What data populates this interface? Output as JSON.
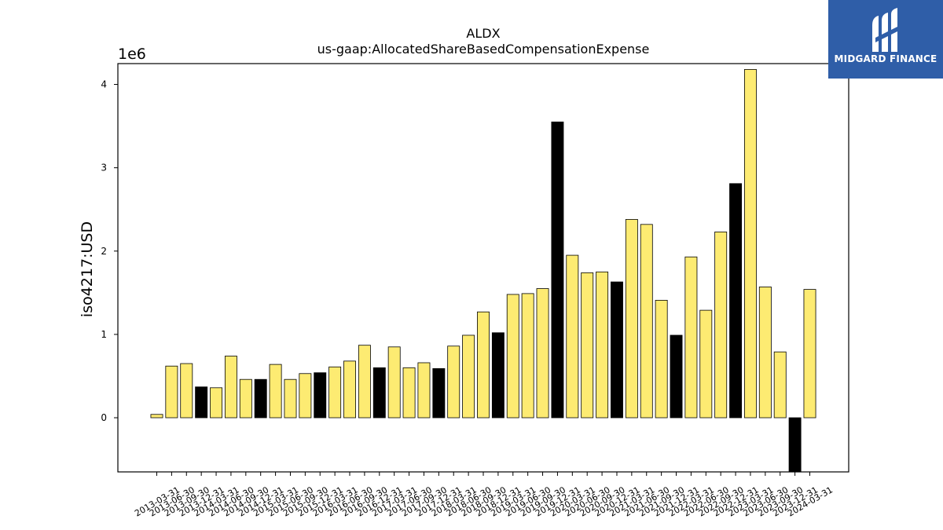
{
  "chart_data": {
    "type": "bar",
    "title": "ALDX",
    "subtitle": "us-gaap:AllocatedShareBasedCompensationExpense",
    "ylabel": "iso4217:USD",
    "xlabel": "",
    "y_scale_label": "1e6",
    "ylim": [
      -650000,
      4250000
    ],
    "yticks": [
      0,
      1,
      2,
      3,
      4
    ],
    "grid": false,
    "colors": {
      "quarter": "#fdeb72",
      "annual": "#000000",
      "edge": "#000000"
    },
    "categories": [
      "2013-03-31",
      "2013-06-30",
      "2013-09-30",
      "2013-12-31",
      "2014-03-31",
      "2014-06-30",
      "2014-09-30",
      "2014-12-31",
      "2015-03-31",
      "2015-06-30",
      "2015-09-30",
      "2015-12-31",
      "2016-03-31",
      "2016-06-30",
      "2016-09-30",
      "2016-12-31",
      "2017-03-31",
      "2017-06-30",
      "2017-09-30",
      "2017-12-31",
      "2018-03-31",
      "2018-06-30",
      "2018-09-30",
      "2018-12-31",
      "2019-03-31",
      "2019-06-30",
      "2019-09-30",
      "2019-12-31",
      "2020-03-31",
      "2020-06-30",
      "2020-09-30",
      "2020-12-31",
      "2021-03-31",
      "2021-06-30",
      "2021-09-30",
      "2021-12-31",
      "2022-03-31",
      "2022-06-30",
      "2022-09-30",
      "2022-12-31",
      "2023-03-31",
      "2023-06-30",
      "2023-09-30",
      "2023-12-31",
      "2024-03-31"
    ],
    "values": [
      40000,
      620000,
      650000,
      370000,
      360000,
      740000,
      460000,
      460000,
      640000,
      460000,
      530000,
      540000,
      610000,
      680000,
      870000,
      600000,
      850000,
      600000,
      660000,
      590000,
      860000,
      990000,
      1270000,
      1020000,
      1480000,
      1490000,
      1550000,
      3550000,
      1950000,
      1740000,
      1750000,
      1630000,
      2380000,
      2320000,
      1410000,
      990000,
      1930000,
      1290000,
      2230000,
      2810000,
      4180000,
      1570000,
      790000,
      -650000,
      1540000
    ],
    "annual_flags": [
      false,
      false,
      false,
      true,
      false,
      false,
      false,
      true,
      false,
      false,
      false,
      true,
      false,
      false,
      false,
      true,
      false,
      false,
      false,
      true,
      false,
      false,
      false,
      true,
      false,
      false,
      false,
      true,
      false,
      false,
      false,
      true,
      false,
      false,
      false,
      true,
      false,
      false,
      false,
      true,
      false,
      false,
      false,
      true,
      false
    ]
  },
  "logo": {
    "text": "MIDGARD FINANCE"
  }
}
